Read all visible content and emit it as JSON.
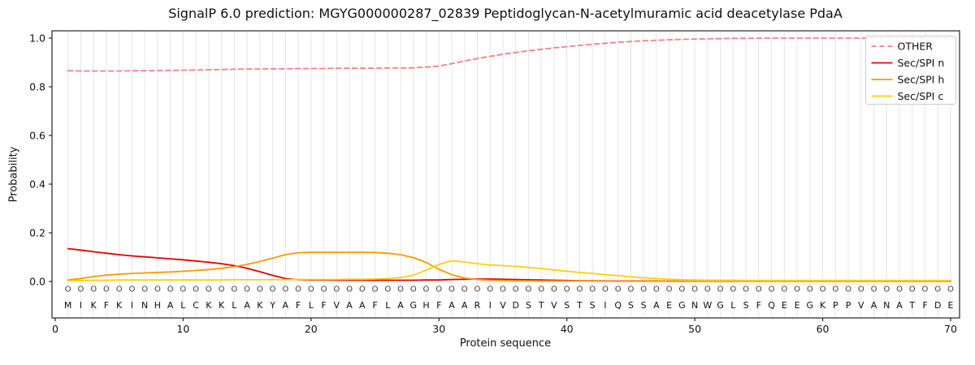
{
  "chart_data": {
    "type": "line",
    "title": "SignalP 6.0 prediction: MGYG000000287_02839 Peptidoglycan-N-acetylmuramic acid deacetylase PdaA",
    "xlabel": "Protein sequence",
    "ylabel": "Probability",
    "x_ticks": [
      0,
      10,
      20,
      30,
      40,
      50,
      60,
      70
    ],
    "y_ticks": [
      0.0,
      0.2,
      0.4,
      0.6,
      0.8,
      1.0
    ],
    "xlim": [
      -0.25,
      70.7
    ],
    "ylim": [
      -0.15,
      1.03
    ],
    "grid": "vertical-per-residue",
    "legend_position": "upper-right",
    "colors": {
      "grid": "#e6e6e6",
      "frame": "#262626",
      "legend_border": "#cccccc"
    },
    "series": [
      {
        "name": "OTHER",
        "color": "#f58282",
        "dash": true,
        "values": [
          0.866,
          0.865,
          0.865,
          0.865,
          0.865,
          0.866,
          0.866,
          0.867,
          0.867,
          0.868,
          0.869,
          0.87,
          0.871,
          0.872,
          0.873,
          0.873,
          0.874,
          0.874,
          0.875,
          0.875,
          0.875,
          0.876,
          0.876,
          0.876,
          0.876,
          0.877,
          0.877,
          0.878,
          0.881,
          0.885,
          0.895,
          0.906,
          0.916,
          0.925,
          0.934,
          0.941,
          0.948,
          0.954,
          0.96,
          0.965,
          0.97,
          0.975,
          0.979,
          0.983,
          0.986,
          0.989,
          0.991,
          0.993,
          0.995,
          0.996,
          0.997,
          0.998,
          0.999,
          0.999,
          1.0,
          1.0,
          1.0,
          1.0,
          1.0,
          1.0,
          1.0,
          1.0,
          1.0,
          1.0,
          1.0,
          1.0,
          1.0,
          1.0,
          1.0,
          1.0
        ]
      },
      {
        "name": "Sec/SPI n",
        "color": "#e60000",
        "dash": false,
        "values": [
          0.135,
          0.129,
          0.122,
          0.116,
          0.11,
          0.105,
          0.101,
          0.097,
          0.093,
          0.089,
          0.084,
          0.079,
          0.073,
          0.065,
          0.054,
          0.04,
          0.025,
          0.012,
          0.007,
          0.006,
          0.006,
          0.005,
          0.005,
          0.005,
          0.005,
          0.005,
          0.005,
          0.005,
          0.006,
          0.006,
          0.008,
          0.009,
          0.01,
          0.01,
          0.009,
          0.008,
          0.007,
          0.006,
          0.005,
          0.004,
          0.003,
          0.003,
          0.002,
          0.002,
          0.002,
          0.002,
          0.002,
          0.001,
          0.001,
          0.001,
          0.001,
          0.001,
          0.001,
          0.001,
          0.001,
          0.001,
          0.001,
          0.001,
          0.001,
          0.001,
          0.001,
          0.001,
          0.001,
          0.001,
          0.001,
          0.001,
          0.001,
          0.001,
          0.001,
          0.001
        ]
      },
      {
        "name": "Sec/SPI h",
        "color": "#ff9900",
        "dash": false,
        "values": [
          0.006,
          0.012,
          0.02,
          0.026,
          0.03,
          0.033,
          0.035,
          0.037,
          0.039,
          0.042,
          0.045,
          0.049,
          0.054,
          0.061,
          0.07,
          0.082,
          0.096,
          0.11,
          0.118,
          0.12,
          0.12,
          0.12,
          0.12,
          0.12,
          0.119,
          0.116,
          0.11,
          0.098,
          0.078,
          0.05,
          0.028,
          0.014,
          0.008,
          0.005,
          0.004,
          0.003,
          0.003,
          0.002,
          0.002,
          0.002,
          0.002,
          0.002,
          0.001,
          0.001,
          0.001,
          0.001,
          0.001,
          0.001,
          0.001,
          0.001,
          0.001,
          0.001,
          0.001,
          0.001,
          0.001,
          0.001,
          0.001,
          0.001,
          0.001,
          0.001,
          0.001,
          0.001,
          0.001,
          0.001,
          0.001,
          0.001,
          0.001,
          0.001,
          0.001,
          0.001
        ]
      },
      {
        "name": "Sec/SPI c",
        "color": "#ffd000",
        "dash": false,
        "values": [
          0.003,
          0.004,
          0.005,
          0.005,
          0.006,
          0.006,
          0.006,
          0.006,
          0.006,
          0.006,
          0.006,
          0.006,
          0.006,
          0.007,
          0.007,
          0.007,
          0.007,
          0.008,
          0.008,
          0.008,
          0.008,
          0.008,
          0.009,
          0.009,
          0.01,
          0.012,
          0.016,
          0.026,
          0.046,
          0.07,
          0.085,
          0.08,
          0.073,
          0.068,
          0.065,
          0.062,
          0.058,
          0.053,
          0.047,
          0.042,
          0.037,
          0.033,
          0.028,
          0.024,
          0.019,
          0.015,
          0.012,
          0.009,
          0.007,
          0.006,
          0.005,
          0.005,
          0.005,
          0.004,
          0.004,
          0.004,
          0.004,
          0.004,
          0.004,
          0.004,
          0.004,
          0.004,
          0.004,
          0.004,
          0.004,
          0.004,
          0.004,
          0.004,
          0.004,
          0.004
        ]
      }
    ]
  },
  "sequence": {
    "residues": "MIKFKINHALCKKLAKYAFLFVAAFLAGHFAARIVDSTVSTSIQSSAEGNWGLSFQEEGKPPVANATFDE",
    "position_labels": "OOOOOOOOOOOOOOOOOOOOOOOOOOOOOOOOOOOOOOOOOOOOOOOOOOOOOOOOOOOOOOOOOOOOOO"
  }
}
